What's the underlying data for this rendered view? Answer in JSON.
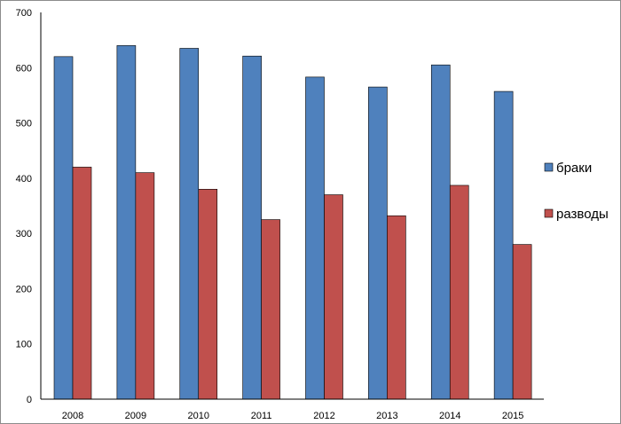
{
  "chart_data": {
    "type": "bar",
    "title": "",
    "xlabel": "",
    "ylabel": "",
    "categories": [
      "2008",
      "2009",
      "2010",
      "2011",
      "2012",
      "2013",
      "2014",
      "2015"
    ],
    "series": [
      {
        "name": "браки",
        "color": "#4F81BD",
        "values": [
          620,
          640,
          635,
          621,
          583,
          565,
          605,
          557
        ]
      },
      {
        "name": "разводы",
        "color": "#C0504D",
        "values": [
          420,
          410,
          380,
          325,
          370,
          332,
          387,
          280
        ]
      }
    ],
    "ylim": [
      0,
      700
    ],
    "yticks": [
      0,
      100,
      200,
      300,
      400,
      500,
      600,
      700
    ],
    "grid": false,
    "legend_position": "right"
  }
}
